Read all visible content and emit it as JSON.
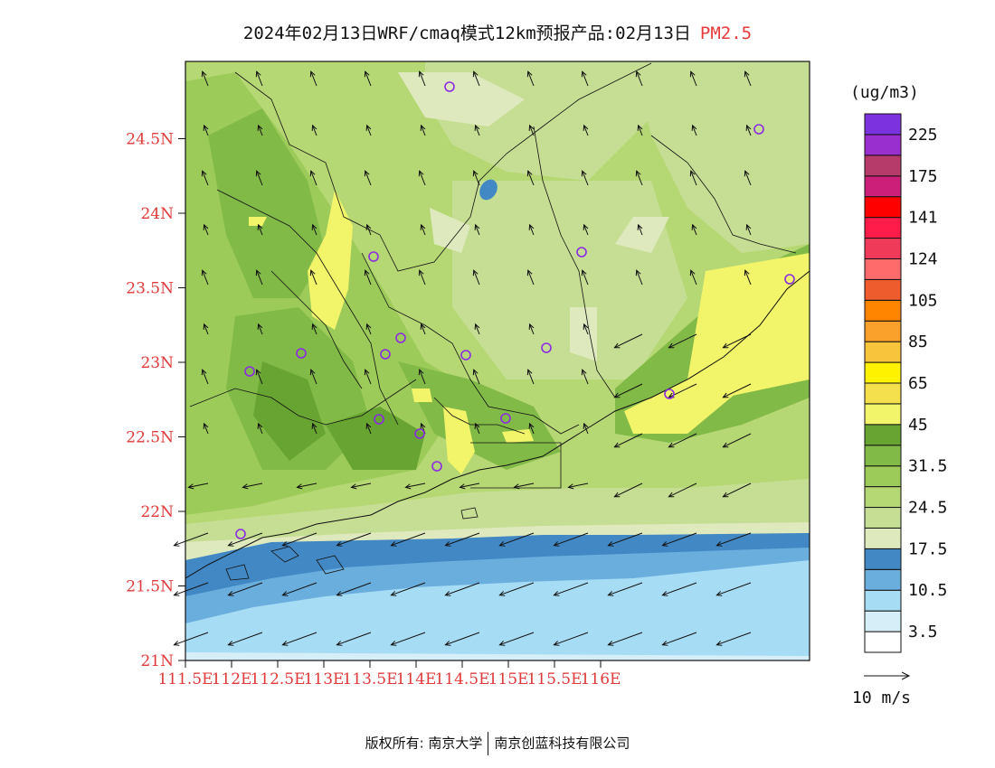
{
  "title": {
    "main": "2024年02月13日WRF/cmaq模式12km预报产品:02月13日",
    "pollutant": "PM2.5"
  },
  "map": {
    "lat_labels": [
      "21N",
      "21.5N",
      "22N",
      "22.5N",
      "23N",
      "23.5N",
      "24N",
      "24.5N"
    ],
    "lon_labels": [
      "111.5E",
      "112E",
      "112.5E",
      "113E",
      "113.5E",
      "114E",
      "114.5E",
      "115E",
      "115.5E",
      "116E"
    ],
    "region": {
      "lon": [
        111.5,
        117.2
      ],
      "lat": [
        21.0,
        25.0
      ]
    }
  },
  "colorbar": {
    "unit": "(ug/m3)",
    "colors": [
      "#ffffff",
      "#d6eef8",
      "#a6dcf4",
      "#6aaede",
      "#4288c4",
      "#dfe9be",
      "#c6de94",
      "#b6d874",
      "#9ccb5a",
      "#82ba48",
      "#68a432",
      "#f2f46a",
      "#f4df4c",
      "#fff200",
      "#f8c43c",
      "#f9a12a",
      "#ff8500",
      "#ee5b2c",
      "#ff6a6a",
      "#f03a5a",
      "#ff1b4a",
      "#ff0000",
      "#cc1f7a",
      "#b63a6a",
      "#9a2fd0",
      "#7d32e0"
    ],
    "labels": [
      "3.5",
      "10.5",
      "17.5",
      "24.5",
      "31.5",
      "45",
      "65",
      "85",
      "105",
      "124",
      "141",
      "175",
      "225"
    ]
  },
  "wind_legend": {
    "label": "10 m/s"
  },
  "footer": {
    "left": "版权所有: 南京大学",
    "right": "南京创蓝科技有限公司"
  }
}
